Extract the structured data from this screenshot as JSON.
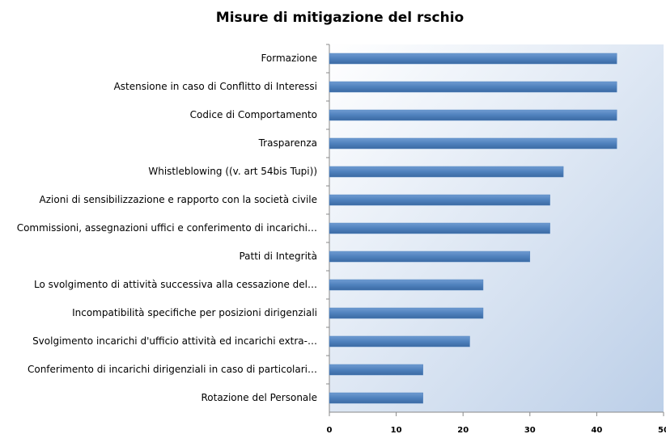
{
  "chart_data": {
    "type": "barh",
    "title": "Misure di mitigazione del rschio",
    "categories": [
      "Formazione",
      "Astensione in caso di Conflitto di Interessi",
      "Codice di Comportamento",
      "Trasparenza",
      "Whistleblowing ((v. art 54bis Tupi))",
      "Azioni di sensibilizzazione e rapporto con la società civile",
      "Commissioni, assegnazioni uffici e conferimento di incarichi…",
      "Patti di Integrità",
      "Lo svolgimento di attività successiva alla cessazione del…",
      "Incompatibilità specifiche per posizioni dirigenziali",
      "Svolgimento incarichi d'ufficio attività ed incarichi extra-…",
      "Conferimento di incarichi dirigenziali in caso di particolari…",
      "Rotazione del Personale"
    ],
    "values": [
      43,
      43,
      43,
      43,
      35,
      33,
      33,
      30,
      23,
      23,
      21,
      14,
      14
    ],
    "color": "#4f81bd",
    "xlim": [
      0,
      50
    ],
    "xticks": [
      0,
      10,
      20,
      30,
      40,
      50
    ],
    "grid": false
  }
}
